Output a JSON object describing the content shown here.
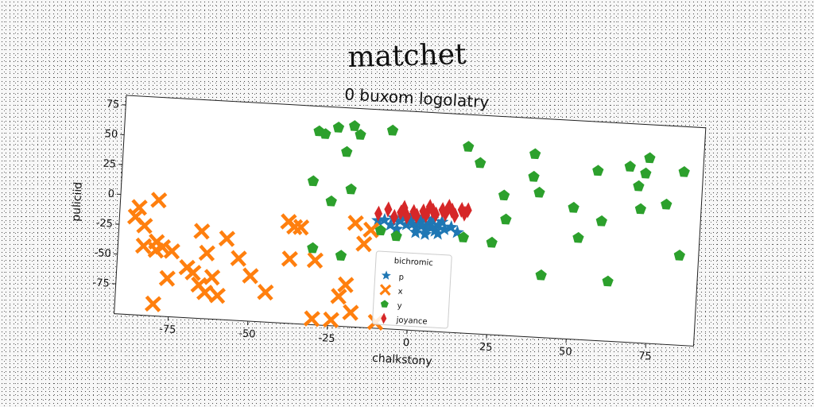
{
  "chart_data": {
    "type": "scatter",
    "suptitle": "matchet",
    "title": "0 buxom logolatry",
    "xlabel": "chalkstony",
    "ylabel": "puliciid",
    "xlim": [
      -92,
      90
    ],
    "ylim": [
      -100,
      83
    ],
    "x_ticks": [
      -75,
      -50,
      -25,
      0,
      25,
      50,
      75
    ],
    "y_ticks": [
      -75,
      -50,
      -25,
      0,
      25,
      50,
      75
    ],
    "x_tick_labels": [
      "-75",
      "-50",
      "-25",
      "0",
      "25",
      "50",
      "75"
    ],
    "y_tick_labels": [
      "-75",
      "-50",
      "-25",
      "0",
      "25",
      "50",
      "75"
    ],
    "grid": false,
    "legend": {
      "title": "bichromic",
      "position": "lower-center"
    },
    "series": [
      {
        "name": "p",
        "marker": "star",
        "color": "#1f77b4",
        "points": [
          [
            -11,
            -10
          ],
          [
            -9,
            -9
          ],
          [
            -6,
            -7
          ],
          [
            -4,
            -9
          ],
          [
            -2,
            -12
          ],
          [
            -1,
            -8
          ],
          [
            0,
            -11
          ],
          [
            1,
            -14
          ],
          [
            2,
            -9
          ],
          [
            3,
            -12
          ],
          [
            4,
            -15
          ],
          [
            5,
            -10
          ],
          [
            6,
            -13
          ],
          [
            7,
            -16
          ],
          [
            8,
            -11
          ],
          [
            10,
            -14
          ],
          [
            12,
            -12
          ],
          [
            14,
            -16
          ],
          [
            3,
            -5
          ],
          [
            6,
            -6
          ],
          [
            9,
            -8
          ],
          [
            -3,
            -6
          ],
          [
            0,
            -4
          ],
          [
            -7,
            -13
          ],
          [
            -5,
            -16
          ],
          [
            1,
            -18
          ],
          [
            4,
            -19
          ],
          [
            8,
            -18
          ]
        ]
      },
      {
        "name": "x",
        "marker": "x",
        "color": "#ff7f0e",
        "points": [
          [
            -86,
            -10
          ],
          [
            -87,
            -18
          ],
          [
            -84,
            -25
          ],
          [
            -80,
            -3
          ],
          [
            -84,
            -42
          ],
          [
            -80,
            -38
          ],
          [
            -78,
            -42
          ],
          [
            -80,
            -45
          ],
          [
            -75,
            -45
          ],
          [
            -76,
            -68
          ],
          [
            -80,
            -90
          ],
          [
            -70,
            -58
          ],
          [
            -66,
            -27
          ],
          [
            -64,
            -45
          ],
          [
            -68,
            -62
          ],
          [
            -66,
            -72
          ],
          [
            -64,
            -78
          ],
          [
            -62,
            -65
          ],
          [
            -60,
            -80
          ],
          [
            -58,
            -32
          ],
          [
            -54,
            -48
          ],
          [
            -50,
            -62
          ],
          [
            -45,
            -75
          ],
          [
            -39,
            -15
          ],
          [
            -37,
            -19
          ],
          [
            -35,
            -19
          ],
          [
            -38,
            -46
          ],
          [
            -30,
            -46
          ],
          [
            -30,
            -95
          ],
          [
            -24,
            -95
          ],
          [
            -22,
            -75
          ],
          [
            -20,
            -65
          ],
          [
            -18,
            -88
          ],
          [
            -18,
            -13
          ],
          [
            -15,
            -30
          ],
          [
            -13,
            -18
          ],
          [
            -10,
            -95
          ]
        ]
      },
      {
        "name": "y",
        "marker": "pentagon",
        "color": "#2ca02c",
        "points": [
          [
            -31,
            62
          ],
          [
            -29,
            60
          ],
          [
            -25,
            66
          ],
          [
            -22,
            46
          ],
          [
            -20,
            68
          ],
          [
            -18,
            61
          ],
          [
            -8,
            66
          ],
          [
            -32,
            20
          ],
          [
            -26,
            4
          ],
          [
            -20,
            15
          ],
          [
            -31,
            -36
          ],
          [
            -22,
            -41
          ],
          [
            -10,
            -18
          ],
          [
            -5,
            -22
          ],
          [
            16,
            56
          ],
          [
            20,
            43
          ],
          [
            16,
            -20
          ],
          [
            25,
            -23
          ],
          [
            28,
            17
          ],
          [
            29,
            -3
          ],
          [
            37,
            53
          ],
          [
            37,
            34
          ],
          [
            39,
            21
          ],
          [
            41,
            -48
          ],
          [
            50,
            10
          ],
          [
            52,
            -15
          ],
          [
            57,
            42
          ],
          [
            59,
            0
          ],
          [
            62,
            -50
          ],
          [
            67,
            47
          ],
          [
            70,
            31
          ],
          [
            71,
            12
          ],
          [
            72,
            42
          ],
          [
            73,
            55
          ],
          [
            79,
            17
          ],
          [
            84,
            45
          ],
          [
            84,
            -25
          ]
        ]
      },
      {
        "name": "joyance",
        "marker": "thin_diamond",
        "color": "#d62728",
        "points": [
          [
            -11,
            -4
          ],
          [
            -8,
            0
          ],
          [
            -6,
            -6
          ],
          [
            -4,
            -2
          ],
          [
            -2,
            -5
          ],
          [
            0,
            -1
          ],
          [
            1,
            -4
          ],
          [
            3,
            0
          ],
          [
            4,
            -3
          ],
          [
            6,
            1
          ],
          [
            7,
            -2
          ],
          [
            9,
            2
          ],
          [
            10,
            -1
          ],
          [
            12,
            2
          ],
          [
            13,
            -2
          ],
          [
            15,
            3
          ],
          [
            16,
            0
          ],
          [
            17,
            3
          ],
          [
            -3,
            2
          ],
          [
            5,
            4
          ],
          [
            11,
            5
          ]
        ]
      }
    ]
  }
}
